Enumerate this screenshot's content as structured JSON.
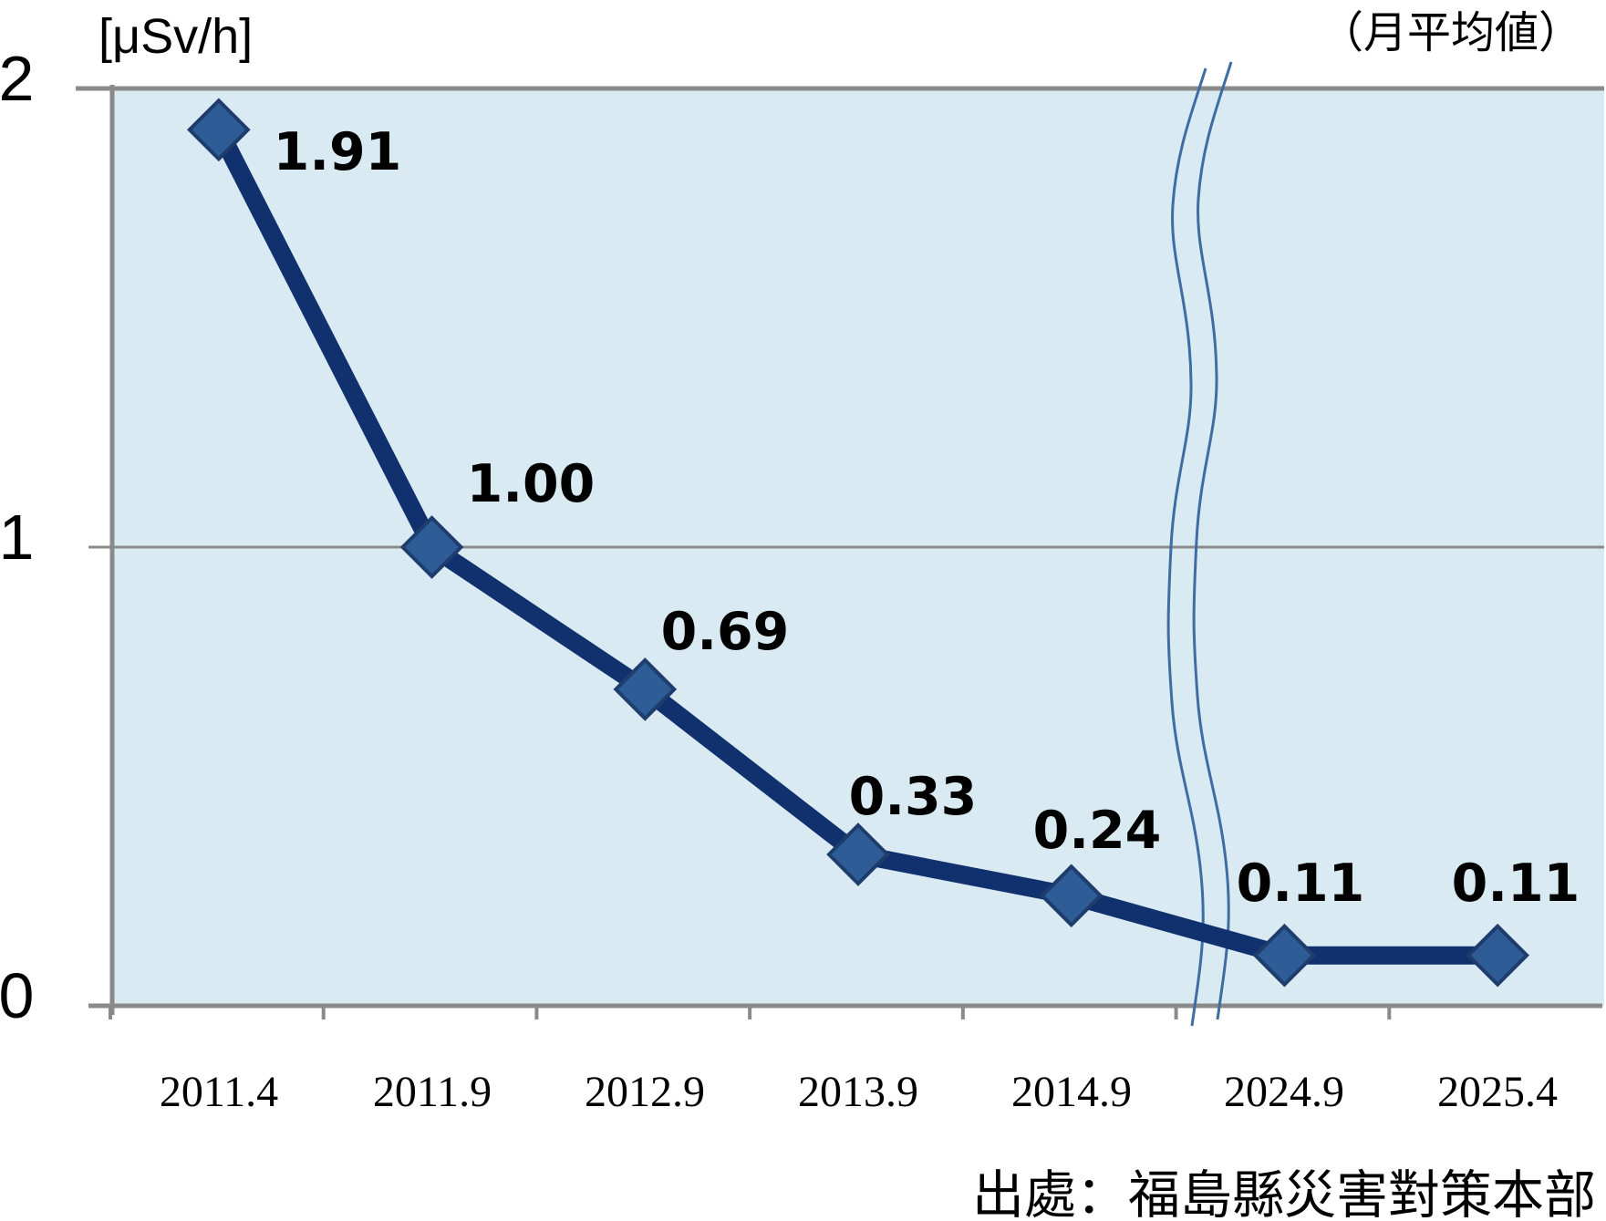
{
  "chart_data": {
    "type": "line",
    "title_unit": "[μSv/h]",
    "title_right": "（月平均値）",
    "source": "出處：福島縣災害對策本部",
    "categories": [
      "2011.4",
      "2011.9",
      "2012.9",
      "2013.9",
      "2014.9",
      "2024.9",
      "2025.4"
    ],
    "values": [
      1.91,
      1.0,
      0.69,
      0.33,
      0.24,
      0.11,
      0.11
    ],
    "data_labels": [
      "1.91",
      "1.00",
      "0.69",
      "0.33",
      "0.24",
      "0.11",
      "0.11"
    ],
    "y_ticks": [
      0,
      1,
      2
    ],
    "ylim": [
      0,
      2
    ],
    "grid": "horizontal gridline at y=1 only",
    "legend": "none",
    "axis_break": {
      "between": [
        "2014.9",
        "2024.9"
      ],
      "style": "double wavy vertical lines"
    },
    "colors": {
      "line": "#11316e",
      "marker_fill": "#2e5c96",
      "marker_stroke": "#1e3d6d",
      "plot_background": "#d9eaf3",
      "axis": "#8a8a8a",
      "break_line": "#3f6da3",
      "text": "#000000"
    }
  }
}
